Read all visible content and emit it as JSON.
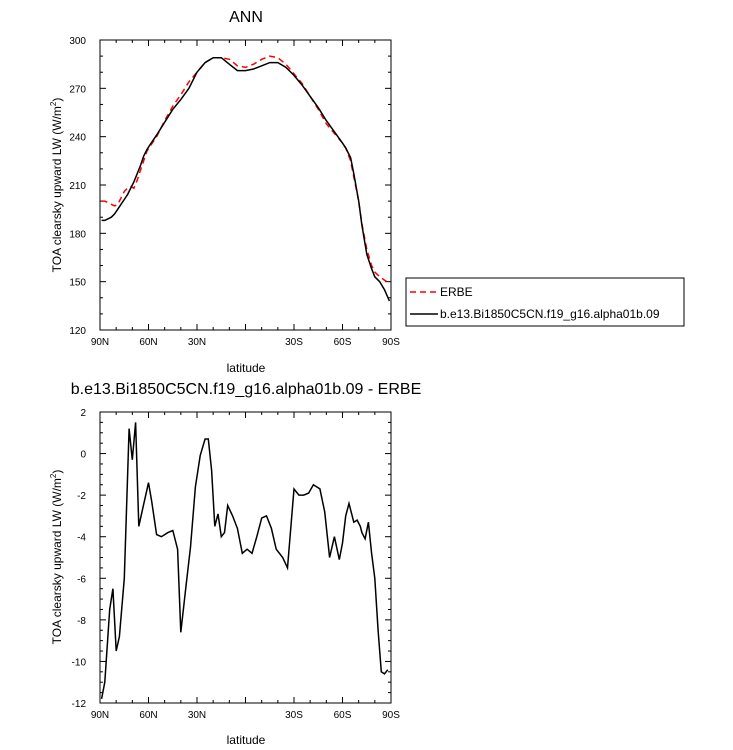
{
  "chart_data": [
    {
      "type": "line",
      "title": "ANN",
      "xlabel": "latitude",
      "ylabel": "TOA clearsky upward LW (W/m",
      "ylabel_sup": "2",
      "ylabel_close": ")",
      "xlim": [
        90,
        -90
      ],
      "ylim": [
        120,
        300
      ],
      "x_ticks": [
        90,
        60,
        30,
        0,
        -30,
        -60,
        -90
      ],
      "x_tick_labels": [
        "90N",
        "60N",
        "30N",
        "",
        "30S",
        "60S",
        "90S"
      ],
      "y_ticks": [
        120,
        150,
        180,
        210,
        240,
        270,
        300
      ],
      "y_tick_labels": [
        "120",
        "150",
        "180",
        "210",
        "240",
        "270",
        "300"
      ],
      "legend": "outside-right",
      "colors": {
        "ERBE": "#ff0000",
        "model": "#000000"
      },
      "series": [
        {
          "name": "ERBE",
          "style": "dashed",
          "x": [
            89,
            87,
            85,
            83,
            81,
            79,
            77,
            75,
            73,
            71,
            69,
            67,
            65,
            63,
            61,
            59,
            55,
            50,
            45,
            40,
            35,
            30,
            25,
            20,
            15,
            10,
            5,
            0,
            -5,
            -10,
            -15,
            -20,
            -25,
            -30,
            -35,
            -40,
            -45,
            -50,
            -55,
            -60,
            -62,
            -65,
            -67,
            -70,
            -72,
            -75,
            -78,
            -80,
            -83,
            -86,
            -89
          ],
          "y": [
            200,
            200,
            199,
            198,
            197,
            198,
            202,
            206,
            208,
            209,
            208,
            213,
            219,
            225,
            231,
            234,
            240,
            250,
            259,
            266,
            274,
            280,
            286,
            289,
            289,
            288,
            284,
            283,
            285,
            288,
            290,
            289,
            285,
            279,
            273,
            265,
            257,
            248,
            242,
            236,
            233,
            225,
            215,
            200,
            186,
            170,
            160,
            156,
            153,
            151,
            149
          ]
        },
        {
          "name": "b.e13.Bi1850C5CN.f19_g16.alpha01b.09",
          "style": "solid",
          "x": [
            89,
            87,
            85,
            83,
            81,
            79,
            77,
            75,
            73,
            71,
            69,
            67,
            65,
            63,
            61,
            59,
            55,
            50,
            45,
            40,
            35,
            30,
            25,
            20,
            15,
            10,
            5,
            0,
            -5,
            -10,
            -15,
            -20,
            -25,
            -30,
            -35,
            -40,
            -45,
            -50,
            -55,
            -60,
            -62,
            -65,
            -67,
            -70,
            -72,
            -75,
            -78,
            -80,
            -83,
            -86,
            -89
          ],
          "y": [
            188,
            188,
            189,
            190,
            192,
            195,
            198,
            201,
            204,
            208,
            212,
            217,
            222,
            228,
            232,
            235,
            241,
            249,
            257,
            263,
            270,
            280,
            286,
            289,
            289,
            285,
            281,
            281,
            282,
            284,
            286,
            286,
            283,
            278,
            272,
            265,
            258,
            250,
            243,
            236,
            233,
            227,
            217,
            200,
            185,
            167,
            158,
            153,
            150,
            145,
            138
          ]
        }
      ]
    },
    {
      "type": "line",
      "title": "b.e13.Bi1850C5CN.f19_g16.alpha01b.09 - ERBE",
      "xlabel": "latitude",
      "ylabel": "TOA clearsky upward LW (W/m",
      "ylabel_sup": "2",
      "ylabel_close": ")",
      "xlim": [
        90,
        -90
      ],
      "ylim": [
        -12,
        2
      ],
      "x_ticks": [
        90,
        60,
        30,
        0,
        -30,
        -60,
        -90
      ],
      "x_tick_labels": [
        "90N",
        "60N",
        "30N",
        "",
        "30S",
        "60S",
        "90S"
      ],
      "y_ticks": [
        -12,
        -10,
        -8,
        -6,
        -4,
        -2,
        0,
        2
      ],
      "y_tick_labels": [
        "-12",
        "-10",
        "-8",
        "-6",
        "-4",
        "-2",
        "0",
        "2"
      ],
      "colors": {
        "difference": "#000000"
      },
      "series": [
        {
          "style": "solid",
          "x": [
            89,
            87,
            84,
            82,
            80,
            78,
            75,
            72,
            70,
            68,
            66,
            64,
            60,
            58,
            55,
            52,
            48,
            45,
            42,
            40,
            37,
            34,
            31,
            28,
            25,
            23,
            21,
            19,
            17,
            15,
            13,
            11,
            8,
            5,
            2,
            -1,
            -4,
            -7,
            -10,
            -13,
            -16,
            -19,
            -23,
            -26,
            -30,
            -33,
            -36,
            -39,
            -42,
            -46,
            -49,
            -52,
            -55,
            -58,
            -60,
            -62,
            -64,
            -67,
            -69,
            -71,
            -72,
            -74,
            -76,
            -78,
            -80,
            -82,
            -84,
            -86,
            -88
          ],
          "y": [
            -11.8,
            -11.0,
            -7.5,
            -6.5,
            -9.5,
            -8.8,
            -6.0,
            1.2,
            -0.3,
            1.5,
            -3.5,
            -2.8,
            -1.4,
            -2.3,
            -3.9,
            -4.0,
            -3.8,
            -3.7,
            -4.6,
            -8.6,
            -6.5,
            -4.5,
            -1.6,
            -0.1,
            0.7,
            0.7,
            -0.8,
            -3.5,
            -2.9,
            -4.0,
            -3.8,
            -2.5,
            -3.0,
            -3.6,
            -4.8,
            -4.6,
            -4.8,
            -4.0,
            -3.1,
            -3.0,
            -3.6,
            -4.6,
            -5.0,
            -5.5,
            -1.7,
            -2.0,
            -2.0,
            -1.9,
            -1.5,
            -1.7,
            -2.8,
            -5.0,
            -4.0,
            -5.1,
            -4.3,
            -3.0,
            -2.4,
            -3.3,
            -3.2,
            -3.5,
            -3.8,
            -4.1,
            -3.3,
            -4.8,
            -6.0,
            -8.5,
            -10.5,
            -10.6,
            -10.4
          ]
        }
      ]
    }
  ]
}
